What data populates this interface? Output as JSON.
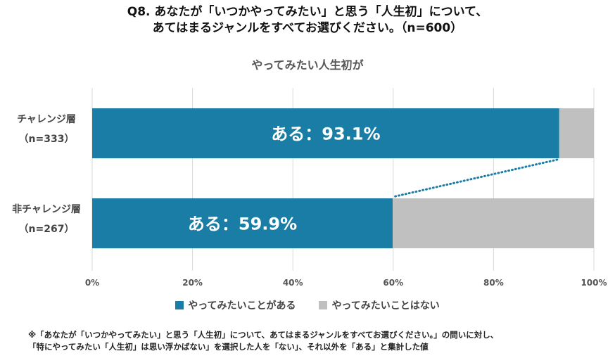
{
  "title_lines": [
    "Q8. あなたが「いつかやってみたい」と思う「人生初」について、",
    "あてはまるジャンルをすべてお選びください。（n=600）"
  ],
  "footnote_lines": [
    "※「あなたが「いつかやってみたい」と思う「人生初」について、あてはまるジャンルをすべてお選びください。」の問いに対し、",
    "「特にやってみたい「人生初」は思い浮かばない」を選択した人を「ない」、それ以外を「ある」と集計した値"
  ],
  "chart_data": {
    "type": "bar",
    "orientation": "horizontal",
    "stacked": true,
    "title": "やってみたい人生初が",
    "categories": [
      {
        "name": "チャレンジ層",
        "n": "（n=333）"
      },
      {
        "name": "非チャレンジ層",
        "n": "（n=267）"
      }
    ],
    "series": [
      {
        "name": "やってみたいことがある",
        "color": "#1A7DA6",
        "values": [
          93.1,
          59.9
        ]
      },
      {
        "name": "やってみたいことはない",
        "color": "#C0C0C0",
        "values": [
          6.9,
          40.1
        ]
      }
    ],
    "data_labels": [
      "ある：93.1%",
      "ある：59.9%"
    ],
    "xlim": [
      0,
      100
    ],
    "x_ticks": [
      "0%",
      "20%",
      "40%",
      "60%",
      "80%",
      "100%"
    ],
    "grid": true,
    "connector": "dotted line linking ends of the ある segments",
    "legend_position": "bottom"
  }
}
